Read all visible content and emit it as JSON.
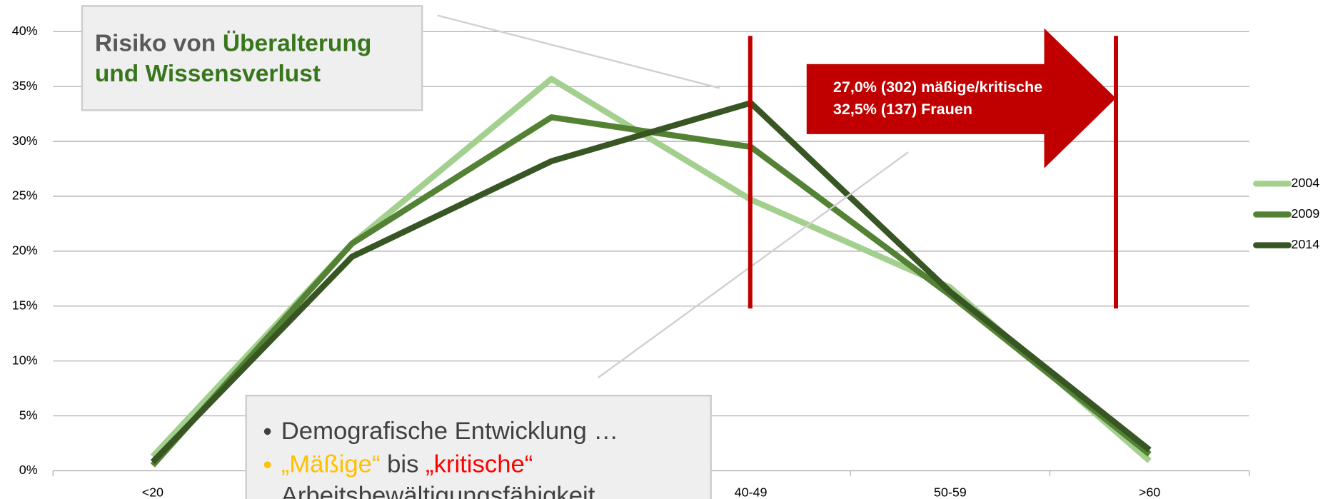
{
  "chart_data": {
    "type": "line",
    "categories": [
      "<20",
      null,
      null,
      "40-49",
      "50-59",
      ">60"
    ],
    "series": [
      {
        "name": "2004",
        "color": "#a3d08e",
        "values": [
          1.3,
          20.7,
          35.7,
          24.7,
          16.7,
          0.9
        ]
      },
      {
        "name": "2009",
        "color": "#548235",
        "values": [
          0.5,
          20.7,
          32.2,
          29.5,
          16.0,
          1.5
        ]
      },
      {
        "name": "2014",
        "color": "#375623",
        "values": [
          0.8,
          19.5,
          28.2,
          33.5,
          16.3,
          1.9
        ]
      }
    ],
    "ylim": [
      0,
      40
    ],
    "yticks": [
      {
        "value": 0,
        "label": "0%"
      },
      {
        "value": 5,
        "label": "5%"
      },
      {
        "value": 10,
        "label": "10%"
      },
      {
        "value": 15,
        "label": "15%"
      },
      {
        "value": 20,
        "label": "20%"
      },
      {
        "value": 25,
        "label": "25%"
      },
      {
        "value": 30,
        "label": "30%"
      },
      {
        "value": 35,
        "label": "35%"
      },
      {
        "value": 40,
        "label": "40%"
      }
    ],
    "grid": true,
    "legend": "right",
    "risk_box": {
      "lead": "Risiko von",
      "highlight": [
        "Überalterung",
        "und Wissensverlust"
      ]
    },
    "arrow_text": [
      "27,0% (302) mäßige/kritische",
      "32,5% (137) Frauen"
    ],
    "bullets": {
      "first": "Demografische Entwicklung …",
      "second": {
        "moderate": "„Mäßige“",
        "joiner": "bis",
        "critical": "„kritische“",
        "rest": "Arbeitsbewältigungsfähigkeit"
      }
    }
  }
}
